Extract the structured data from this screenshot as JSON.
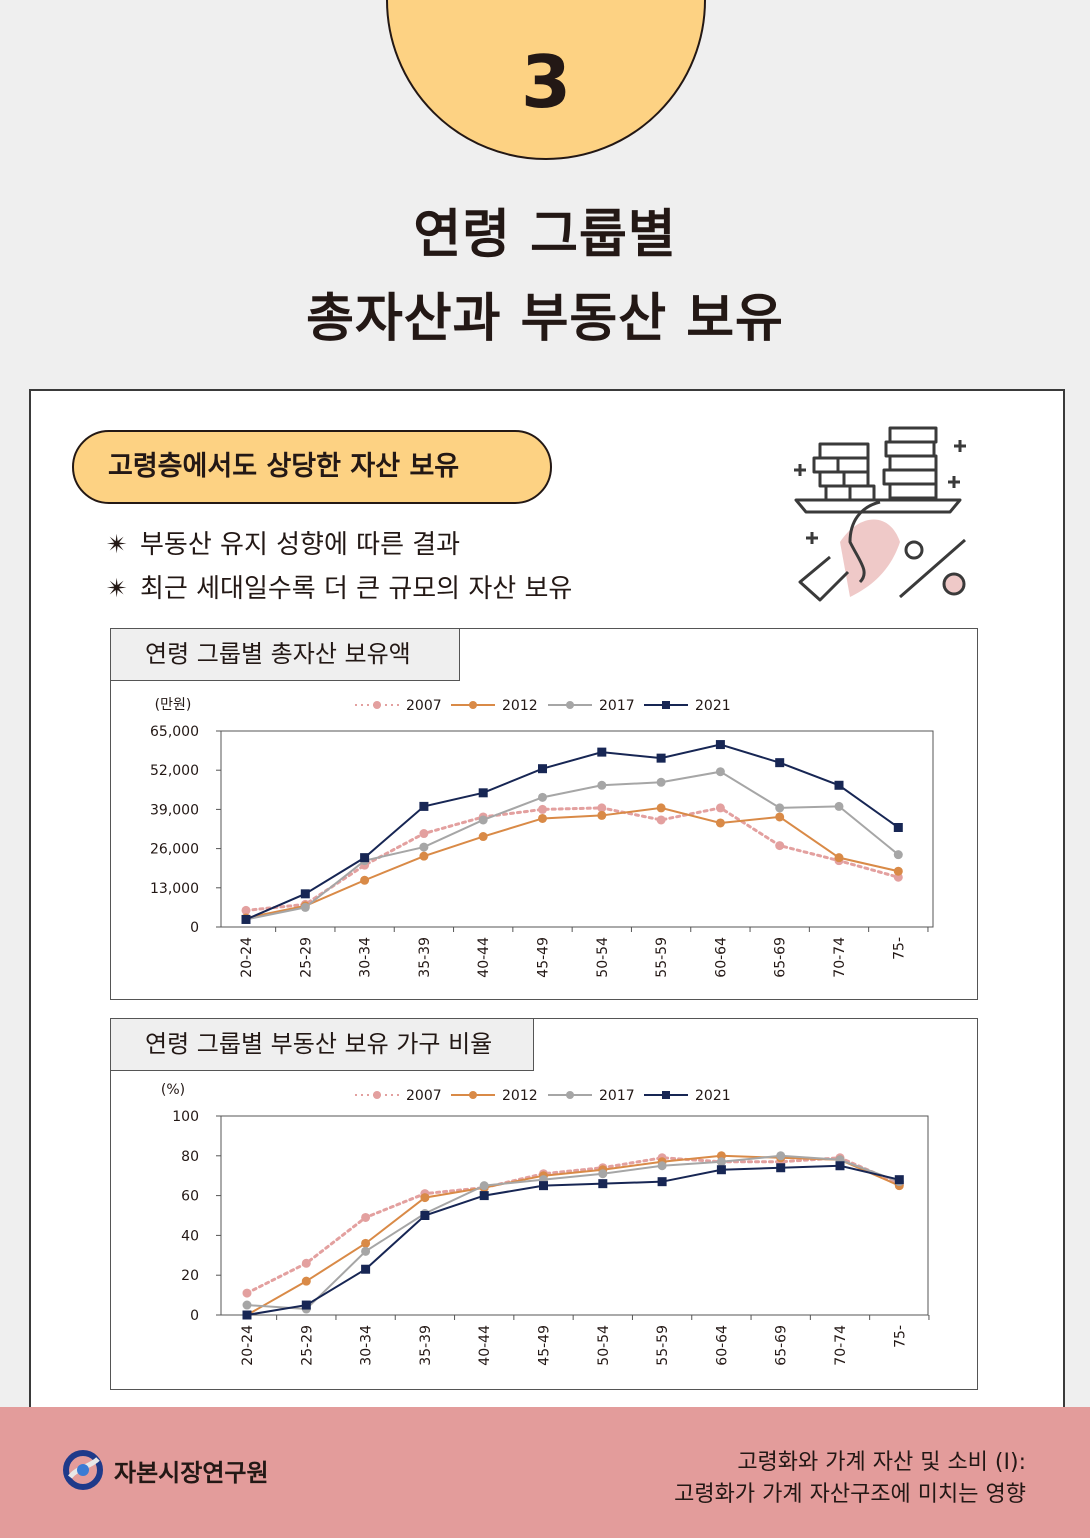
{
  "header": {
    "number": "3",
    "title_line1": "연령 그룹별",
    "title_line2": "총자산과 부동산 보유"
  },
  "section": {
    "pill_label": "고령층에서도 상당한 자산 보유",
    "bullets": [
      {
        "symbol": "✴",
        "text": "부동산 유지 성향에 따른 결과"
      },
      {
        "symbol": "✴",
        "text": "최근 세대일수록 더 큰 규모의 자산 보유"
      }
    ]
  },
  "chart1_title": "연령 그룹별 총자산 보유액",
  "chart2_title": "연령 그룹별 부동산 보유 가구 비율",
  "colors": {
    "s2007": "#e3a09f",
    "s2012": "#d98a47",
    "s2017": "#a6a6a6",
    "s2021": "#172654",
    "accent": "#fdd283",
    "footer": "#e39c9b"
  },
  "chart_data": [
    {
      "type": "line",
      "title": "연령 그룹별 총자산 보유액",
      "ylabel": "(만원)",
      "ylim": [
        0,
        65000
      ],
      "yticks": [
        "0",
        "13,000",
        "26,000",
        "39,000",
        "52,000",
        "65,000"
      ],
      "ytick_values": [
        0,
        13000,
        26000,
        39000,
        52000,
        65000
      ],
      "categories": [
        "20-24",
        "25-29",
        "30-34",
        "35-39",
        "40-44",
        "45-49",
        "50-54",
        "55-59",
        "60-64",
        "65-69",
        "70-74",
        "75-"
      ],
      "legend_position": "top",
      "series": [
        {
          "name": "2007",
          "style": "dotted",
          "values": [
            5500,
            7500,
            20500,
            31000,
            36500,
            39000,
            39500,
            35500,
            39500,
            27000,
            22000,
            16500
          ]
        },
        {
          "name": "2012",
          "style": "solid",
          "values": [
            3000,
            7000,
            15500,
            23500,
            30000,
            36000,
            37000,
            39500,
            34500,
            36500,
            23000,
            18500
          ]
        },
        {
          "name": "2017",
          "style": "solid",
          "values": [
            2500,
            6500,
            22000,
            26500,
            35500,
            43000,
            47000,
            48000,
            51500,
            39500,
            40000,
            24000
          ]
        },
        {
          "name": "2021",
          "style": "solid",
          "values": [
            2500,
            11000,
            23000,
            40000,
            44500,
            52500,
            58000,
            56000,
            60500,
            54500,
            47000,
            33000
          ]
        }
      ]
    },
    {
      "type": "line",
      "title": "연령 그룹별 부동산 보유 가구 비율",
      "ylabel": "(%)",
      "ylim": [
        0,
        100
      ],
      "yticks": [
        "0",
        "20",
        "40",
        "60",
        "80",
        "100"
      ],
      "ytick_values": [
        0,
        20,
        40,
        60,
        80,
        100
      ],
      "categories": [
        "20-24",
        "25-29",
        "30-34",
        "35-39",
        "40-44",
        "45-49",
        "50-54",
        "55-59",
        "60-64",
        "65-69",
        "70-74",
        "75-"
      ],
      "legend_position": "top",
      "series": [
        {
          "name": "2007",
          "style": "dotted",
          "values": [
            11,
            26,
            49,
            61,
            64,
            71,
            74,
            79,
            77,
            77,
            79,
            66
          ]
        },
        {
          "name": "2012",
          "style": "solid",
          "values": [
            0,
            17,
            36,
            59,
            64,
            70,
            73,
            77,
            80,
            79,
            78,
            65
          ]
        },
        {
          "name": "2017",
          "style": "solid",
          "values": [
            5,
            3,
            32,
            51,
            65,
            68,
            71,
            75,
            77,
            80,
            78,
            67
          ]
        },
        {
          "name": "2021",
          "style": "solid",
          "values": [
            0,
            5,
            23,
            50,
            60,
            65,
            66,
            67,
            73,
            74,
            75,
            68
          ]
        }
      ]
    }
  ],
  "footer": {
    "org_name": "자본시장연구원",
    "ref_line1": "고령화와 가계 자산 및 소비 (I):",
    "ref_line2": "고령화가 가계 자산구조에 미치는 영향"
  }
}
